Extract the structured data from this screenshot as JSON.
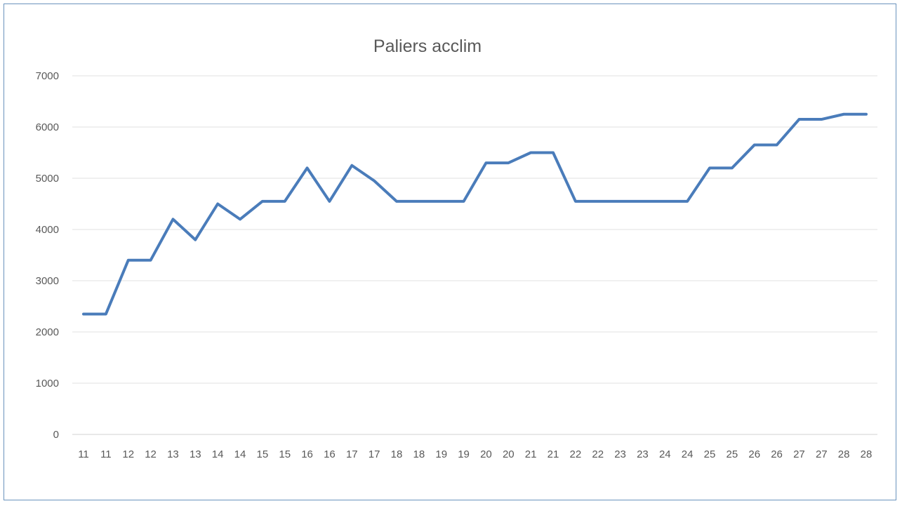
{
  "chart_data": {
    "type": "line",
    "title": "Paliers acclim",
    "xlabel": "",
    "ylabel": "",
    "ylim": [
      0,
      7000
    ],
    "yticks": [
      0,
      1000,
      2000,
      3000,
      4000,
      5000,
      6000,
      7000
    ],
    "grid": true,
    "legend": "none",
    "color": "#4a7cba",
    "categories": [
      "11",
      "11",
      "12",
      "12",
      "13",
      "13",
      "14",
      "14",
      "15",
      "15",
      "16",
      "16",
      "17",
      "17",
      "18",
      "18",
      "19",
      "19",
      "20",
      "20",
      "21",
      "21",
      "22",
      "22",
      "23",
      "23",
      "24",
      "24",
      "25",
      "25",
      "26",
      "26",
      "27",
      "27",
      "28",
      "28"
    ],
    "series": [
      {
        "values": [
          2350,
          2350,
          3400,
          3400,
          4200,
          3800,
          4500,
          4200,
          4550,
          4550,
          5200,
          4550,
          5250,
          4950,
          4550,
          4550,
          4550,
          4550,
          5300,
          5300,
          5500,
          5500,
          4550,
          4550,
          4550,
          4550,
          4550,
          4550,
          5200,
          5200,
          5650,
          5650,
          6150,
          6150,
          6250,
          6250
        ]
      }
    ]
  }
}
